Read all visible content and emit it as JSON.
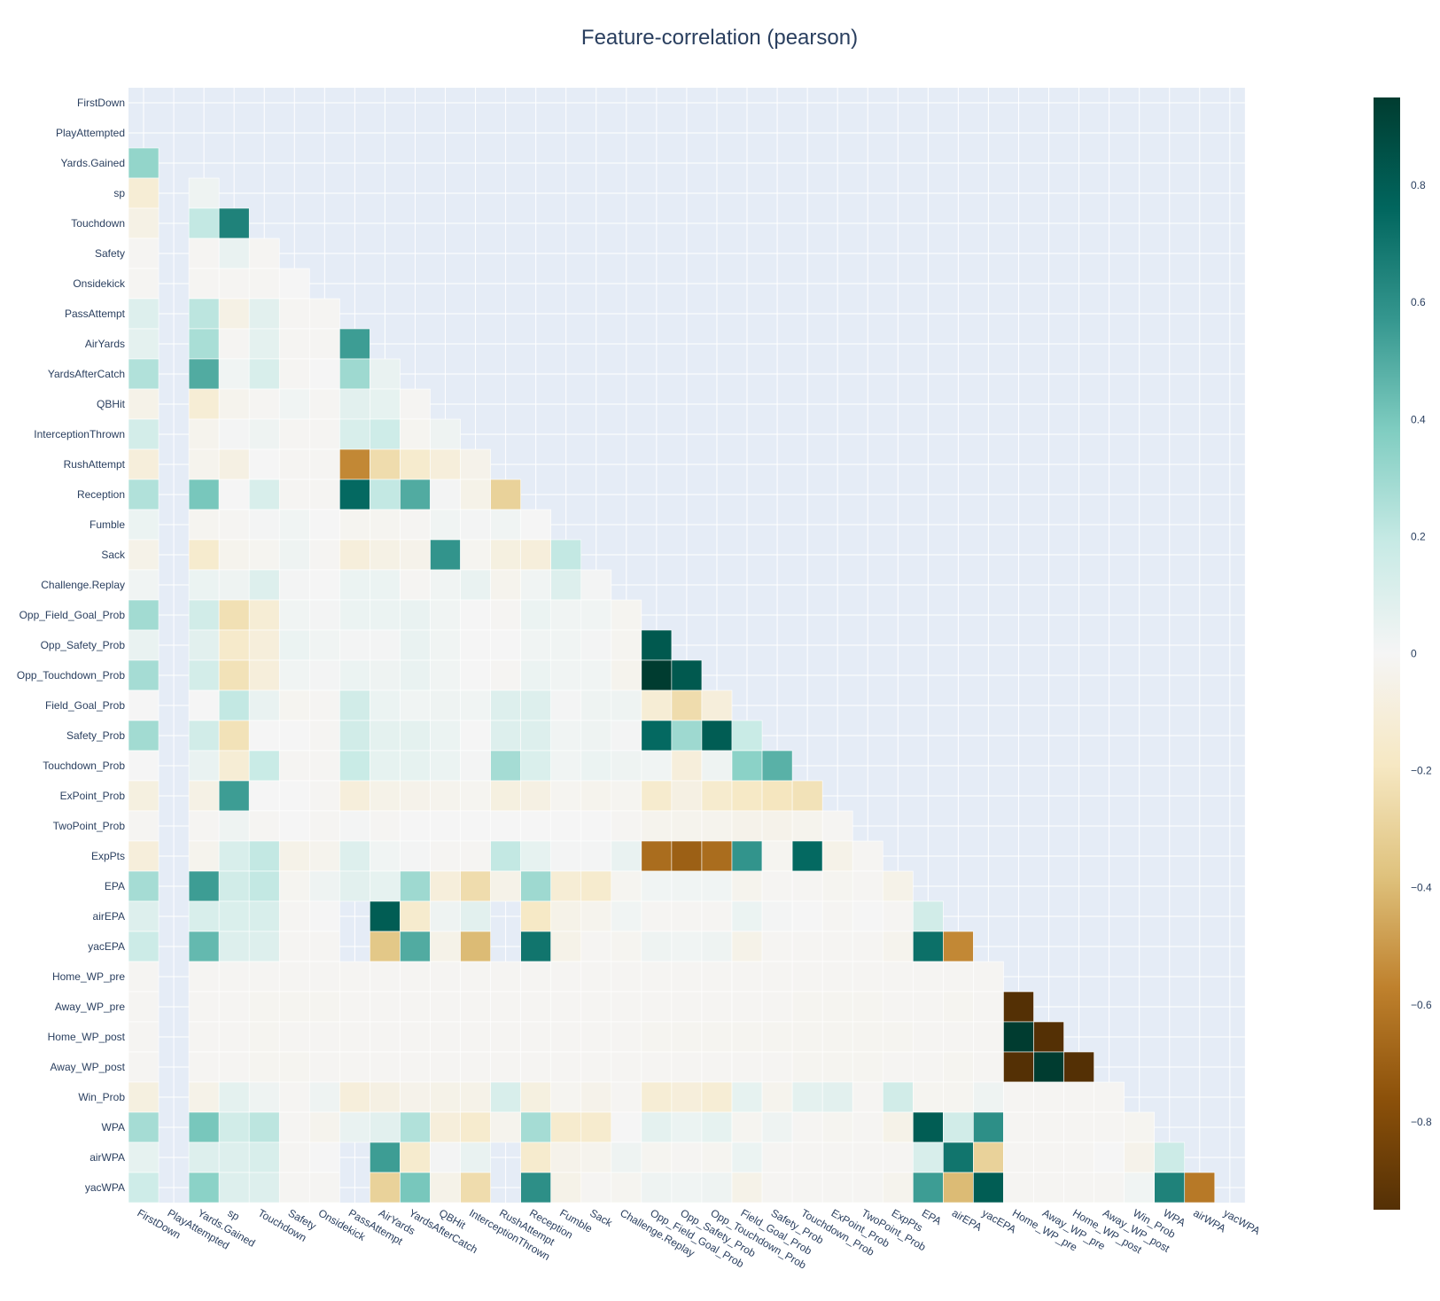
{
  "chart_data": {
    "type": "heatmap",
    "title": "Feature-correlation (pearson)",
    "colorscale": "BrBG",
    "zmin": -0.95,
    "zmax": 0.95,
    "colorbar_ticks": [
      0.8,
      0.6,
      0.4,
      0.2,
      0,
      -0.2,
      -0.4,
      -0.6,
      -0.8
    ],
    "colorbar_tick_labels": [
      "0.8",
      "0.6",
      "0.4",
      "0.2",
      "0",
      "−0.2",
      "−0.4",
      "−0.6",
      "−0.8"
    ],
    "features": [
      "FirstDown",
      "PlayAttempted",
      "Yards.Gained",
      "sp",
      "Touchdown",
      "Safety",
      "Onsidekick",
      "PassAttempt",
      "AirYards",
      "YardsAfterCatch",
      "QBHit",
      "InterceptionThrown",
      "RushAttempt",
      "Reception",
      "Fumble",
      "Sack",
      "Challenge.Replay",
      "Opp_Field_Goal_Prob",
      "Opp_Safety_Prob",
      "Opp_Touchdown_Prob",
      "Field_Goal_Prob",
      "Safety_Prob",
      "Touchdown_Prob",
      "ExPoint_Prob",
      "TwoPoint_Prob",
      "ExpPts",
      "EPA",
      "airEPA",
      "yacEPA",
      "Home_WP_pre",
      "Away_WP_pre",
      "Home_WP_post",
      "Away_WP_post",
      "Win_Prob",
      "WPA",
      "airWPA",
      "yacWPA"
    ],
    "z": [
      [],
      [
        null
      ],
      [
        0.33,
        null
      ],
      [
        -0.12,
        null,
        0.03
      ],
      [
        -0.06,
        null,
        0.2,
        0.65
      ],
      [
        -0.01,
        null,
        -0.01,
        0.05,
        -0.01
      ],
      [
        -0.01,
        null,
        -0.01,
        -0.01,
        -0.01,
        0
      ],
      [
        0.1,
        null,
        0.22,
        -0.06,
        0.08,
        -0.01,
        -0.01
      ],
      [
        0.07,
        null,
        0.27,
        -0.01,
        0.07,
        -0.01,
        -0.01,
        0.55
      ],
      [
        0.25,
        null,
        0.5,
        0.02,
        0.12,
        -0.01,
        0,
        0.3,
        0.05
      ],
      [
        -0.05,
        null,
        -0.12,
        -0.03,
        -0.01,
        0.02,
        -0.01,
        0.08,
        0.06,
        -0.01
      ],
      [
        0.14,
        null,
        -0.03,
        0.01,
        0.03,
        -0.01,
        -0.01,
        0.12,
        0.16,
        -0.02,
        0.03
      ],
      [
        -0.1,
        null,
        -0.03,
        -0.07,
        0,
        -0.01,
        -0.01,
        -0.55,
        -0.25,
        -0.15,
        -0.1,
        -0.04
      ],
      [
        0.25,
        null,
        0.4,
        0,
        0.12,
        -0.01,
        -0.01,
        0.75,
        0.2,
        0.5,
        0.01,
        -0.05,
        -0.3
      ],
      [
        0.04,
        null,
        -0.02,
        -0.01,
        0.01,
        0.02,
        0,
        -0.02,
        -0.02,
        -0.01,
        0.02,
        0.01,
        0.02,
        0
      ],
      [
        -0.05,
        null,
        -0.15,
        -0.03,
        -0.02,
        0.03,
        -0.01,
        -0.1,
        -0.06,
        -0.04,
        0.58,
        -0.02,
        -0.08,
        -0.1,
        0.2
      ],
      [
        0.02,
        null,
        0.04,
        0.03,
        0.1,
        0.01,
        0,
        0.04,
        0.04,
        -0.01,
        0.02,
        0.05,
        -0.03,
        0.02,
        0.1,
        0.01
      ],
      [
        0.29,
        null,
        0.15,
        -0.23,
        -0.12,
        0.02,
        0.01,
        0.04,
        0.04,
        0.05,
        0.02,
        0,
        -0.01,
        0.04,
        0.02,
        0.02,
        -0.02
      ],
      [
        0.05,
        null,
        0.08,
        -0.16,
        -0.1,
        0.04,
        0.02,
        0.01,
        0.01,
        0.05,
        0.02,
        0,
        0,
        0.02,
        0.02,
        0.01,
        -0.02,
        0.82
      ],
      [
        0.28,
        null,
        0.14,
        -0.22,
        -0.1,
        0.02,
        0.01,
        0.04,
        0.03,
        0.05,
        0.02,
        0,
        -0.01,
        0.04,
        0.02,
        0.02,
        -0.03,
        0.95,
        0.82
      ],
      [
        0,
        null,
        0,
        0.2,
        0.05,
        -0.02,
        -0.01,
        0.15,
        0.04,
        0.02,
        0.03,
        0.02,
        0.1,
        0.1,
        0.01,
        0.03,
        0.03,
        -0.12,
        -0.25,
        -0.1
      ],
      [
        0.29,
        null,
        0.15,
        -0.22,
        0,
        0,
        -0.01,
        0.15,
        0.07,
        0.07,
        0.04,
        0,
        0.1,
        0.1,
        0.02,
        0.03,
        0.01,
        0.75,
        0.3,
        0.8,
        0.18
      ],
      [
        0,
        null,
        0.05,
        -0.12,
        0.18,
        -0.01,
        -0.01,
        0.18,
        0.06,
        0.06,
        0.04,
        0.01,
        0.28,
        0.11,
        0.02,
        0.04,
        0.03,
        0.02,
        -0.1,
        0.03,
        0.35,
        0.48
      ],
      [
        -0.08,
        null,
        -0.06,
        0.55,
        0,
        0,
        -0.01,
        -0.1,
        -0.05,
        -0.04,
        -0.03,
        -0.02,
        -0.08,
        -0.07,
        -0.02,
        -0.03,
        -0.02,
        -0.15,
        -0.07,
        -0.15,
        -0.18,
        -0.2,
        -0.22
      ],
      [
        -0.01,
        null,
        -0.01,
        0.03,
        -0.01,
        0,
        -0.01,
        0.01,
        -0.01,
        0,
        0,
        0,
        0,
        0,
        0,
        0,
        -0.01,
        -0.03,
        -0.03,
        -0.03,
        -0.04,
        -0.04,
        -0.03,
        -0.01
      ],
      [
        -0.1,
        null,
        -0.03,
        0.12,
        0.2,
        -0.05,
        -0.03,
        0.1,
        0.02,
        0.01,
        -0.01,
        -0.01,
        0.2,
        0.06,
        0.01,
        0.01,
        0.05,
        -0.65,
        -0.7,
        -0.65,
        0.58,
        -0.02,
        0.75,
        -0.05,
        -0.01
      ],
      [
        0.28,
        null,
        0.55,
        0.15,
        0.2,
        -0.02,
        0.03,
        0.08,
        0.06,
        0.3,
        -0.1,
        -0.25,
        -0.05,
        0.3,
        -0.12,
        -0.15,
        -0.02,
        0.02,
        0.02,
        0.02,
        -0.03,
        -0.01,
        -0.01,
        -0.02,
        -0.01,
        -0.05
      ],
      [
        0.1,
        null,
        0.12,
        0.11,
        0.12,
        -0.01,
        0,
        null,
        0.8,
        -0.15,
        0.03,
        0.08,
        null,
        -0.18,
        -0.05,
        -0.03,
        0.02,
        -0.01,
        -0.01,
        -0.01,
        0.04,
        0.01,
        0,
        -0.01,
        0,
        -0.01,
        0.15
      ],
      [
        0.17,
        null,
        0.45,
        0.1,
        0.1,
        -0.01,
        -0.01,
        null,
        -0.35,
        0.5,
        -0.05,
        -0.4,
        null,
        0.7,
        -0.05,
        -0.01,
        -0.02,
        0.03,
        0.02,
        0.03,
        -0.05,
        -0.01,
        -0.01,
        -0.01,
        -0.01,
        -0.03,
        0.72,
        -0.55
      ],
      [
        -0.01,
        null,
        -0.01,
        -0.01,
        -0.01,
        -0.01,
        -0.01,
        -0.01,
        -0.01,
        -0.01,
        -0.01,
        -0.01,
        -0.01,
        -0.01,
        -0.01,
        -0.01,
        -0.01,
        -0.01,
        -0.01,
        -0.01,
        -0.01,
        -0.01,
        -0.01,
        -0.01,
        -0.01,
        -0.01,
        -0.01,
        -0.01,
        -0.01
      ],
      [
        -0.01,
        null,
        -0.01,
        -0.01,
        -0.02,
        -0.02,
        -0.02,
        -0.01,
        -0.01,
        -0.01,
        -0.01,
        -0.01,
        -0.01,
        -0.01,
        -0.01,
        -0.01,
        -0.01,
        -0.01,
        -0.01,
        -0.01,
        -0.01,
        -0.01,
        -0.02,
        -0.02,
        -0.02,
        -0.01,
        -0.01,
        -0.02,
        -0.01,
        -0.95
      ],
      [
        -0.01,
        null,
        -0.01,
        -0.01,
        -0.02,
        -0.01,
        -0.01,
        -0.01,
        -0.01,
        -0.01,
        -0.01,
        -0.01,
        -0.01,
        -0.01,
        -0.01,
        -0.01,
        -0.01,
        -0.02,
        -0.02,
        -0.02,
        -0.02,
        -0.02,
        -0.02,
        -0.02,
        -0.02,
        -0.02,
        -0.01,
        -0.01,
        -0.01,
        0.95,
        -0.95
      ],
      [
        -0.01,
        null,
        -0.01,
        -0.01,
        -0.02,
        -0.02,
        -0.01,
        -0.01,
        -0.01,
        -0.01,
        -0.01,
        -0.01,
        -0.01,
        -0.01,
        -0.01,
        -0.01,
        -0.01,
        -0.01,
        -0.01,
        -0.01,
        -0.01,
        -0.01,
        -0.02,
        -0.02,
        -0.02,
        -0.01,
        -0.01,
        -0.02,
        -0.01,
        -0.95,
        0.95,
        -0.95
      ],
      [
        -0.08,
        null,
        -0.05,
        0.07,
        0.03,
        -0.01,
        0.03,
        -0.1,
        -0.07,
        -0.04,
        -0.05,
        -0.05,
        0.12,
        -0.08,
        -0.02,
        -0.04,
        -0.01,
        -0.12,
        -0.1,
        -0.12,
        0.06,
        -0.03,
        0.07,
        0.08,
        -0.01,
        0.15,
        -0.02,
        -0.02,
        0.03,
        -0.01,
        -0.01,
        -0.01,
        -0.01
      ],
      [
        0.28,
        null,
        0.4,
        0.15,
        0.22,
        -0.01,
        -0.03,
        0.05,
        0.08,
        0.25,
        -0.1,
        -0.15,
        -0.03,
        0.28,
        -0.15,
        -0.15,
        0,
        0.07,
        0.04,
        0.06,
        -0.02,
        0.03,
        -0.01,
        -0.02,
        -0.01,
        -0.05,
        0.8,
        0.15,
        0.6,
        -0.01,
        -0.01,
        -0.01,
        -0.01,
        -0.02
      ],
      [
        0.06,
        null,
        0.1,
        0.1,
        0.12,
        -0.01,
        0,
        null,
        0.55,
        -0.15,
        0.01,
        0.05,
        null,
        -0.15,
        -0.04,
        -0.03,
        0.03,
        -0.02,
        -0.01,
        -0.02,
        0.04,
        -0.01,
        -0.01,
        -0.01,
        -0.01,
        -0.01,
        0.12,
        0.7,
        -0.3,
        -0.01,
        -0.01,
        -0.01,
        0,
        -0.04,
        0.17
      ],
      [
        0.16,
        null,
        0.35,
        0.1,
        0.1,
        -0.01,
        -0.01,
        null,
        -0.3,
        0.4,
        -0.05,
        -0.25,
        null,
        0.6,
        -0.05,
        -0.01,
        -0.02,
        0.03,
        0.02,
        0.03,
        -0.05,
        -0.01,
        -0.01,
        -0.01,
        -0.01,
        -0.03,
        0.55,
        -0.4,
        0.8,
        -0.01,
        -0.01,
        -0.01,
        -0.01,
        0.02,
        0.65,
        -0.6
      ]
    ]
  }
}
